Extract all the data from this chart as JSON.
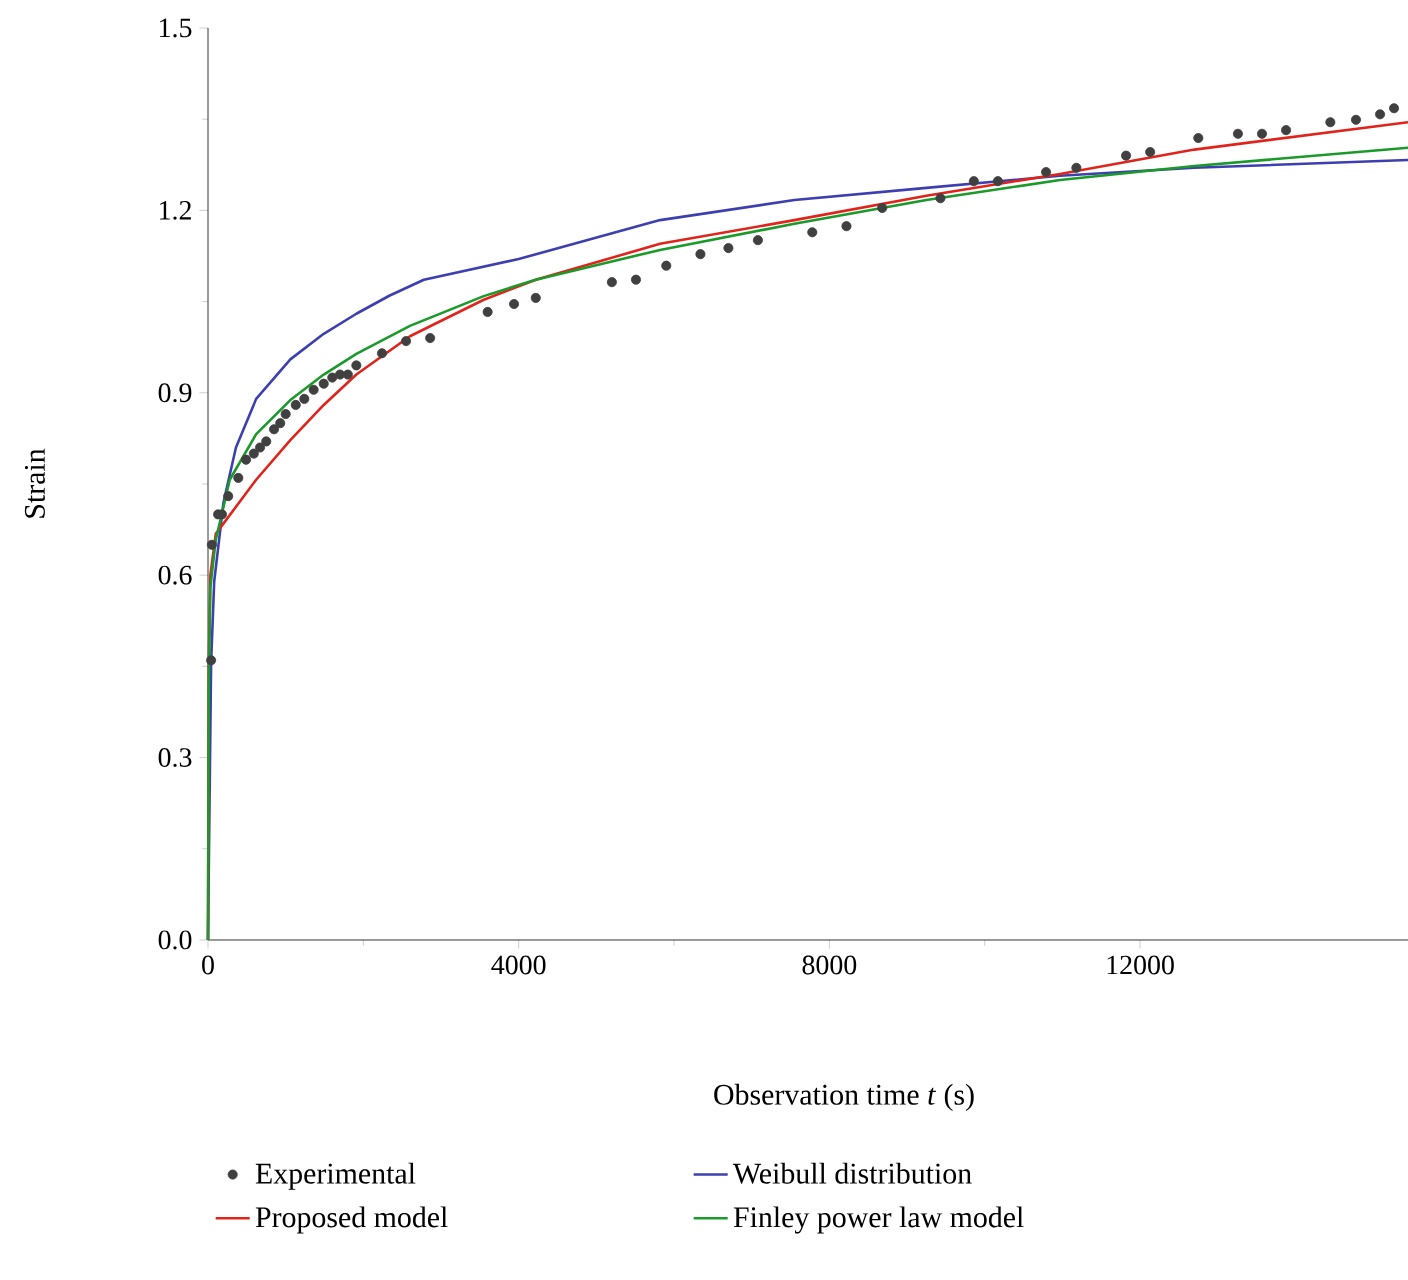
{
  "chart_data": {
    "type": "line",
    "xlabel": "Observation time *t* (s)",
    "ylabel": "Strain",
    "xlim": [
      0,
      15450
    ],
    "ylim": [
      0,
      1.5
    ],
    "xticks": [
      0,
      4000,
      8000,
      12000
    ],
    "yticks": [
      {
        "value": 0,
        "label": "0.0"
      },
      {
        "value": 0.3,
        "label": "0.3"
      },
      {
        "value": 0.6,
        "label": "0.6"
      },
      {
        "value": 0.9,
        "label": "0.9"
      },
      {
        "value": 1.2,
        "label": "1.2"
      },
      {
        "value": 1.5,
        "label": "1.5"
      }
    ],
    "legend": "bottom",
    "grid": false,
    "series": [
      {
        "name": "Experimental",
        "type": "scatter",
        "color": "#404040",
        "x": [
          40,
          50,
          130,
          180,
          260,
          390,
          490,
          590,
          670,
          750,
          850,
          930,
          1000,
          1130,
          1240,
          1360,
          1490,
          1600,
          1700,
          1800,
          1910,
          2240,
          2550,
          2860,
          3600,
          3940,
          4220,
          5200,
          5510,
          5900,
          6340,
          6700,
          7080,
          7780,
          8220,
          8680,
          9430,
          9860,
          10170,
          10790,
          11180,
          11820,
          12130,
          12750,
          13260,
          13570,
          13880,
          14450,
          14780,
          15090,
          15270
        ],
        "values": [
          0.46,
          0.65,
          0.7,
          0.7,
          0.73,
          0.76,
          0.79,
          0.8,
          0.81,
          0.82,
          0.84,
          0.85,
          0.865,
          0.88,
          0.89,
          0.905,
          0.915,
          0.925,
          0.93,
          0.93,
          0.945,
          0.965,
          0.985,
          0.99,
          1.033,
          1.046,
          1.056,
          1.082,
          1.086,
          1.109,
          1.128,
          1.138,
          1.151,
          1.164,
          1.174,
          1.204,
          1.22,
          1.248,
          1.248,
          1.263,
          1.27,
          1.29,
          1.296,
          1.319,
          1.326,
          1.326,
          1.332,
          1.345,
          1.349,
          1.358,
          1.368
        ]
      },
      {
        "name": "Weibull distribution",
        "color": "#3d3fb0",
        "x": [
          0,
          40,
          80,
          200,
          360,
          620,
          1060,
          1490,
          1910,
          2340,
          2780,
          4000,
          5820,
          7550,
          9250,
          10970,
          12700,
          15450
        ],
        "values": [
          0,
          0.457,
          0.59,
          0.72,
          0.81,
          0.89,
          0.955,
          0.997,
          1.03,
          1.06,
          1.086,
          1.12,
          1.184,
          1.217,
          1.237,
          1.257,
          1.27,
          1.283
        ]
      },
      {
        "name": "Proposed model",
        "color": "#e0241c",
        "x": [
          0,
          10,
          30,
          100,
          620,
          1060,
          1490,
          1910,
          2600,
          3550,
          4220,
          5820,
          7550,
          9250,
          10970,
          12700,
          15450
        ],
        "values": [
          0,
          0.45,
          0.6,
          0.668,
          0.757,
          0.822,
          0.88,
          0.93,
          0.993,
          1.053,
          1.086,
          1.145,
          1.184,
          1.224,
          1.26,
          1.3,
          1.345
        ]
      },
      {
        "name": "Finley power law model",
        "color": "#1a9a2a",
        "x": [
          0,
          10,
          30,
          100,
          280,
          620,
          1060,
          1490,
          1910,
          2600,
          3550,
          4220,
          5820,
          7550,
          9250,
          10970,
          12700,
          15450
        ],
        "values": [
          0,
          0.42,
          0.58,
          0.658,
          0.757,
          0.832,
          0.888,
          0.93,
          0.964,
          1.01,
          1.059,
          1.086,
          1.135,
          1.178,
          1.217,
          1.25,
          1.273,
          1.303
        ]
      }
    ]
  }
}
